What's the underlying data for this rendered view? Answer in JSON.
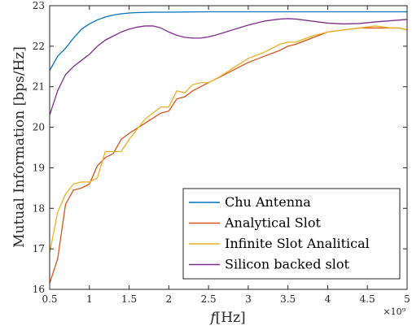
{
  "chart_data": {
    "type": "line",
    "title": "",
    "xlabel": "f[Hz]",
    "xlabel_italic": "f",
    "xlabel_unit": "[Hz]",
    "ylabel": "Mutual Information [bps/Hz]",
    "x_exponent_label": "×10⁹",
    "xlim": [
      0.5,
      5
    ],
    "ylim": [
      16,
      23
    ],
    "x_ticks": [
      0.5,
      1,
      1.5,
      2,
      2.5,
      3,
      3.5,
      4,
      4.5,
      5
    ],
    "x_tick_labels": [
      "0.5",
      "1",
      "1.5",
      "2",
      "2.5",
      "3",
      "3.5",
      "4",
      "4.5",
      "5"
    ],
    "y_ticks": [
      16,
      17,
      18,
      19,
      20,
      21,
      22,
      23
    ],
    "y_tick_labels": [
      "16",
      "17",
      "18",
      "19",
      "20",
      "21",
      "22",
      "23"
    ],
    "grid": false,
    "legend_position": "bottom-right",
    "series": [
      {
        "name": "Chu Antenna",
        "color": "#0072BD",
        "x": [
          0.5,
          0.6,
          0.7,
          0.8,
          0.9,
          1.0,
          1.1,
          1.2,
          1.3,
          1.4,
          1.5,
          1.6,
          1.8,
          2.0,
          2.5,
          3.0,
          3.5,
          4.0,
          4.5,
          5.0
        ],
        "values": [
          21.4,
          21.75,
          21.95,
          22.2,
          22.42,
          22.55,
          22.65,
          22.72,
          22.77,
          22.8,
          22.82,
          22.83,
          22.84,
          22.84,
          22.85,
          22.85,
          22.85,
          22.85,
          22.85,
          22.85
        ]
      },
      {
        "name": "Analytical Slot",
        "color": "#D95319",
        "x": [
          0.5,
          0.6,
          0.7,
          0.8,
          0.9,
          1.0,
          1.1,
          1.2,
          1.3,
          1.4,
          1.5,
          1.7,
          1.9,
          2.0,
          2.1,
          2.2,
          2.3,
          2.4,
          2.5,
          2.6,
          2.8,
          3.0,
          3.2,
          3.4,
          3.5,
          3.6,
          3.8,
          4.0,
          4.2,
          4.4,
          4.6,
          4.8,
          4.9,
          5.0
        ],
        "values": [
          16.15,
          16.75,
          18.1,
          18.45,
          18.5,
          18.6,
          19.05,
          19.25,
          19.35,
          19.7,
          19.85,
          20.1,
          20.35,
          20.4,
          20.7,
          20.75,
          20.9,
          21.0,
          21.1,
          21.2,
          21.4,
          21.6,
          21.75,
          21.9,
          22.0,
          22.05,
          22.2,
          22.35,
          22.4,
          22.45,
          22.45,
          22.45,
          22.45,
          22.4
        ]
      },
      {
        "name": "Infinite Slot Analitical",
        "color": "#EDB120",
        "x": [
          0.5,
          0.6,
          0.7,
          0.8,
          0.9,
          1.0,
          1.1,
          1.2,
          1.3,
          1.4,
          1.5,
          1.7,
          1.9,
          2.0,
          2.1,
          2.2,
          2.3,
          2.4,
          2.5,
          2.6,
          2.8,
          3.0,
          3.2,
          3.4,
          3.5,
          3.6,
          3.8,
          4.0,
          4.2,
          4.4,
          4.6,
          4.8,
          4.9,
          5.0
        ],
        "values": [
          16.9,
          17.9,
          18.35,
          18.6,
          18.65,
          18.65,
          18.75,
          19.4,
          19.4,
          19.4,
          19.7,
          20.2,
          20.5,
          20.5,
          20.9,
          20.85,
          21.05,
          21.1,
          21.1,
          21.2,
          21.45,
          21.7,
          21.85,
          22.05,
          22.1,
          22.1,
          22.25,
          22.35,
          22.4,
          22.45,
          22.5,
          22.45,
          22.45,
          22.4
        ]
      },
      {
        "name": "Silicon backed slot",
        "color": "#7E2F8E",
        "x": [
          0.5,
          0.6,
          0.7,
          0.8,
          0.9,
          1.0,
          1.1,
          1.2,
          1.3,
          1.4,
          1.5,
          1.6,
          1.7,
          1.8,
          1.9,
          2.0,
          2.1,
          2.2,
          2.3,
          2.4,
          2.5,
          2.6,
          2.8,
          3.0,
          3.2,
          3.4,
          3.5,
          3.6,
          3.8,
          4.0,
          4.2,
          4.4,
          4.6,
          4.8,
          5.0
        ],
        "values": [
          20.3,
          20.9,
          21.3,
          21.5,
          21.65,
          21.8,
          22.0,
          22.15,
          22.25,
          22.35,
          22.42,
          22.47,
          22.5,
          22.5,
          22.45,
          22.35,
          22.27,
          22.22,
          22.2,
          22.2,
          22.23,
          22.28,
          22.4,
          22.52,
          22.62,
          22.67,
          22.68,
          22.67,
          22.62,
          22.57,
          22.55,
          22.56,
          22.6,
          22.63,
          22.66
        ]
      }
    ]
  }
}
